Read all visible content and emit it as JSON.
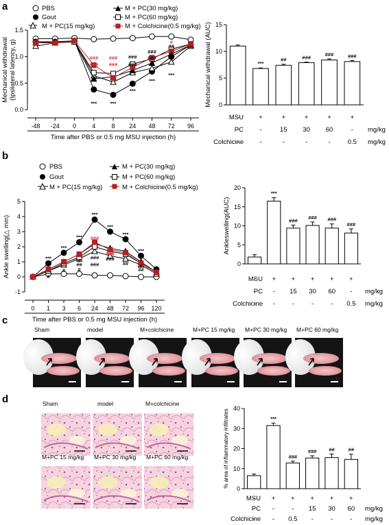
{
  "panel_labels": [
    "a",
    "b",
    "c",
    "d"
  ],
  "legend": {
    "pbs": "PBS",
    "gout": "Gout",
    "pc15": "M + PC(15 mg/kg)",
    "pc30": "M + PC(30 mg/kg)",
    "pc60": "M + PC(60 mg/kg)",
    "colchicine": "M + Colchicine(0.5 mg/kg)"
  },
  "colors": {
    "colchicine": "#b22222",
    "sig_red": "#d9342b",
    "photo_bg": "#141414"
  },
  "condition_table": {
    "row_labels": [
      "MSU",
      "PC",
      "Colchicine"
    ],
    "unit": "mg/kg",
    "a": [
      [
        "-",
        "+",
        "+",
        "+",
        "+",
        "+"
      ],
      [
        "-",
        "-",
        "15",
        "30",
        "60",
        "-"
      ],
      [
        "-",
        "-",
        "-",
        "-",
        "-",
        "0.5"
      ]
    ],
    "b": [
      [
        "-",
        "+",
        "+",
        "+",
        "+",
        "+"
      ],
      [
        "-",
        "-",
        "15",
        "30",
        "60",
        "-"
      ],
      [
        "-",
        "-",
        "-",
        "-",
        "-",
        "0.5"
      ]
    ],
    "d": [
      [
        "-",
        "+",
        "+",
        "+",
        "+",
        "+"
      ],
      [
        "-",
        "-",
        "-",
        "15",
        "30",
        "60"
      ],
      [
        "-",
        "-",
        "0.5",
        "-",
        "-",
        "-"
      ]
    ]
  },
  "photo_labels_c": [
    "Sham",
    "model",
    "M+colchicine",
    "M+PC 15 mg/kg",
    "M+PC 30 mg/kg",
    "M+PC 60 mg/kg"
  ],
  "photo_labels_d": [
    "Sham",
    "model",
    "M+colchicine",
    "M+PC 15 mg/kg",
    "M+PC 30 mg/kg",
    "M+PC 60 mg/kg"
  ],
  "chart_data": [
    {
      "id": "a_line",
      "type": "line",
      "ylabel": "Mechanical withdrawal\n(Ipsilateral latency, g)",
      "xlabel": "Time after PBS or 0.5 mg MSU injection (h)",
      "x_ticks": [
        "-48",
        "-24",
        "0",
        "4",
        "8",
        "24",
        "48",
        "72",
        "96"
      ],
      "ylim": [
        0,
        1.5
      ],
      "y_ticks": [
        "0.0",
        "0.5",
        "1.0",
        "1.5"
      ],
      "series": [
        {
          "name": "PBS",
          "values": [
            1.34,
            1.34,
            1.35,
            1.33,
            1.34,
            1.35,
            1.38,
            1.38,
            1.32
          ]
        },
        {
          "name": "Gout",
          "values": [
            1.28,
            1.28,
            1.3,
            0.38,
            0.28,
            0.49,
            0.72,
            1.0,
            1.22
          ]
        },
        {
          "name": "M + PC(15 mg/kg)",
          "values": [
            1.2,
            1.26,
            1.3,
            0.64,
            0.52,
            0.7,
            0.78,
            0.9,
            1.2
          ]
        },
        {
          "name": "M + PC(30 mg/kg)",
          "values": [
            1.26,
            1.28,
            1.28,
            0.58,
            0.62,
            0.74,
            0.88,
            1.05,
            1.22
          ]
        },
        {
          "name": "M + PC(60 mg/kg)",
          "values": [
            1.26,
            1.26,
            1.28,
            0.7,
            0.68,
            0.86,
            0.96,
            1.14,
            1.24
          ]
        },
        {
          "name": "M + Colchicine(0.5 mg/kg)",
          "values": [
            1.26,
            1.26,
            1.3,
            0.84,
            0.6,
            0.8,
            0.98,
            1.1,
            1.24
          ]
        }
      ],
      "annotations": [
        {
          "text": "***",
          "x": "4",
          "y": 0.12
        },
        {
          "text": "***",
          "x": "8",
          "y": 0.12
        },
        {
          "text": "***",
          "x": "24",
          "y": 0.36
        },
        {
          "text": "***",
          "x": "48",
          "y": 0.55
        },
        {
          "text": "***",
          "x": "72",
          "y": 0.66
        },
        {
          "text": "###",
          "x": "4",
          "y": 0.98,
          "red": true
        },
        {
          "text": "###",
          "x": "4",
          "y": 0.86,
          "red": true
        },
        {
          "text": "###",
          "x": "8",
          "y": 0.98,
          "red": true
        },
        {
          "text": "###",
          "x": "8",
          "y": 0.86,
          "red": true
        },
        {
          "text": "###",
          "x": "24",
          "y": 1.0
        },
        {
          "text": "###",
          "x": "24",
          "y": 0.86
        },
        {
          "text": "###",
          "x": "48",
          "y": 1.1
        },
        {
          "text": "###",
          "x": "48",
          "y": 0.98
        },
        {
          "text": "##",
          "x": "72",
          "y": 1.2
        },
        {
          "text": "#",
          "x": "72",
          "y": 1.28,
          "red": true
        },
        {
          "text": "#",
          "x": "72",
          "y": 1.06
        }
      ]
    },
    {
      "id": "a_bar",
      "type": "bar",
      "ylabel": "Mechanical withdrawal (AUC)",
      "ylim": [
        0,
        15
      ],
      "y_ticks": [
        "0",
        "5",
        "10",
        "15"
      ],
      "values": [
        11,
        6.8,
        7.4,
        7.9,
        8.4,
        8.1
      ],
      "errors": [
        0.2,
        0.1,
        0.2,
        0.1,
        0.2,
        0.2
      ],
      "sig": [
        "",
        "***",
        "##",
        "###",
        "###",
        "###"
      ]
    },
    {
      "id": "b_line",
      "type": "line",
      "ylabel": "Ankle swelling(△ mm)",
      "xlabel": "Time after PBS or 0.5 mg MSU injection (h)",
      "x_ticks": [
        "0",
        "1",
        "3",
        "6",
        "24",
        "48",
        "72",
        "96",
        "120"
      ],
      "ylim": [
        -1,
        5
      ],
      "y_ticks": [
        "-1",
        "0",
        "1",
        "2",
        "3",
        "4",
        "5"
      ],
      "series": [
        {
          "name": "PBS",
          "values": [
            0,
            0.2,
            0.2,
            0.2,
            0.1,
            0.1,
            0.05,
            0,
            0
          ]
        },
        {
          "name": "Gout",
          "values": [
            0,
            0.9,
            1.6,
            2.3,
            3.8,
            3.0,
            2.5,
            1.4,
            0.5
          ]
        },
        {
          "name": "M + PC(15 mg/kg)",
          "values": [
            0,
            0.4,
            0.8,
            1.2,
            1.7,
            1.4,
            1.2,
            0.8,
            0.2
          ]
        },
        {
          "name": "M + PC(30 mg/kg)",
          "values": [
            0,
            0.5,
            1.0,
            1.5,
            2.2,
            1.9,
            1.7,
            1.0,
            0.3
          ]
        },
        {
          "name": "M + PC(60 mg/kg)",
          "values": [
            0,
            0.4,
            0.9,
            1.3,
            2.0,
            1.7,
            1.5,
            0.9,
            0.3
          ]
        },
        {
          "name": "M + Colchicine(0.5 mg/kg)",
          "values": [
            0,
            0.5,
            1.0,
            1.5,
            2.3,
            1.8,
            1.6,
            0.9,
            0.3
          ]
        }
      ],
      "annotations": [
        {
          "text": "***",
          "x": "1",
          "y": 1.25
        },
        {
          "text": "***",
          "x": "3",
          "y": 1.95
        },
        {
          "text": "***",
          "x": "6",
          "y": 2.65
        },
        {
          "text": "***",
          "x": "24",
          "y": 4.15
        },
        {
          "text": "***",
          "x": "48",
          "y": 3.35
        },
        {
          "text": "***",
          "x": "72",
          "y": 2.85
        },
        {
          "text": "***",
          "x": "96",
          "y": 1.75
        },
        {
          "text": "#",
          "x": "1",
          "y": 0.05
        },
        {
          "text": "#",
          "x": "3",
          "y": 0.45
        },
        {
          "text": "#",
          "x": "6",
          "y": 1.1
        },
        {
          "text": "#",
          "x": "6",
          "y": 0.5
        },
        {
          "text": "##",
          "x": "6",
          "y": 0.85
        },
        {
          "text": "###",
          "x": "24",
          "y": 2.6,
          "red": true
        },
        {
          "text": "###",
          "x": "24",
          "y": 1.3
        },
        {
          "text": "###",
          "x": "24",
          "y": 0.85
        },
        {
          "text": "###",
          "x": "48",
          "y": 1.2
        },
        {
          "text": "###",
          "x": "48",
          "y": 1.55,
          "red": true
        },
        {
          "text": "##",
          "x": "72",
          "y": 0.9
        },
        {
          "text": "##",
          "x": "96",
          "y": 0.5
        },
        {
          "text": "#",
          "x": "96",
          "y": 0.75
        }
      ]
    },
    {
      "id": "b_bar",
      "type": "bar",
      "ylabel": "Ankleswelling(AUC)",
      "ylim": [
        0,
        20
      ],
      "y_ticks": [
        "0",
        "5",
        "10",
        "15",
        "20"
      ],
      "values": [
        1.8,
        16.5,
        9.4,
        10.1,
        9.4,
        8.1
      ],
      "errors": [
        0.6,
        0.9,
        0.8,
        0.9,
        1.1,
        1.1
      ],
      "sig": [
        "",
        "***",
        "###",
        "###",
        "###",
        "###"
      ]
    },
    {
      "id": "d_bar",
      "type": "bar",
      "ylabel": "% area of inflammatory infiltrates",
      "ylim": [
        0,
        40
      ],
      "y_ticks": [
        "0",
        "10",
        "20",
        "30",
        "40"
      ],
      "values": [
        6.5,
        31.5,
        12.8,
        15.3,
        15.5,
        14.6
      ],
      "errors": [
        0.8,
        1.2,
        0.9,
        1.1,
        1.8,
        2.6
      ],
      "sig": [
        "",
        "***",
        "###",
        "###",
        "##",
        "##"
      ]
    }
  ]
}
